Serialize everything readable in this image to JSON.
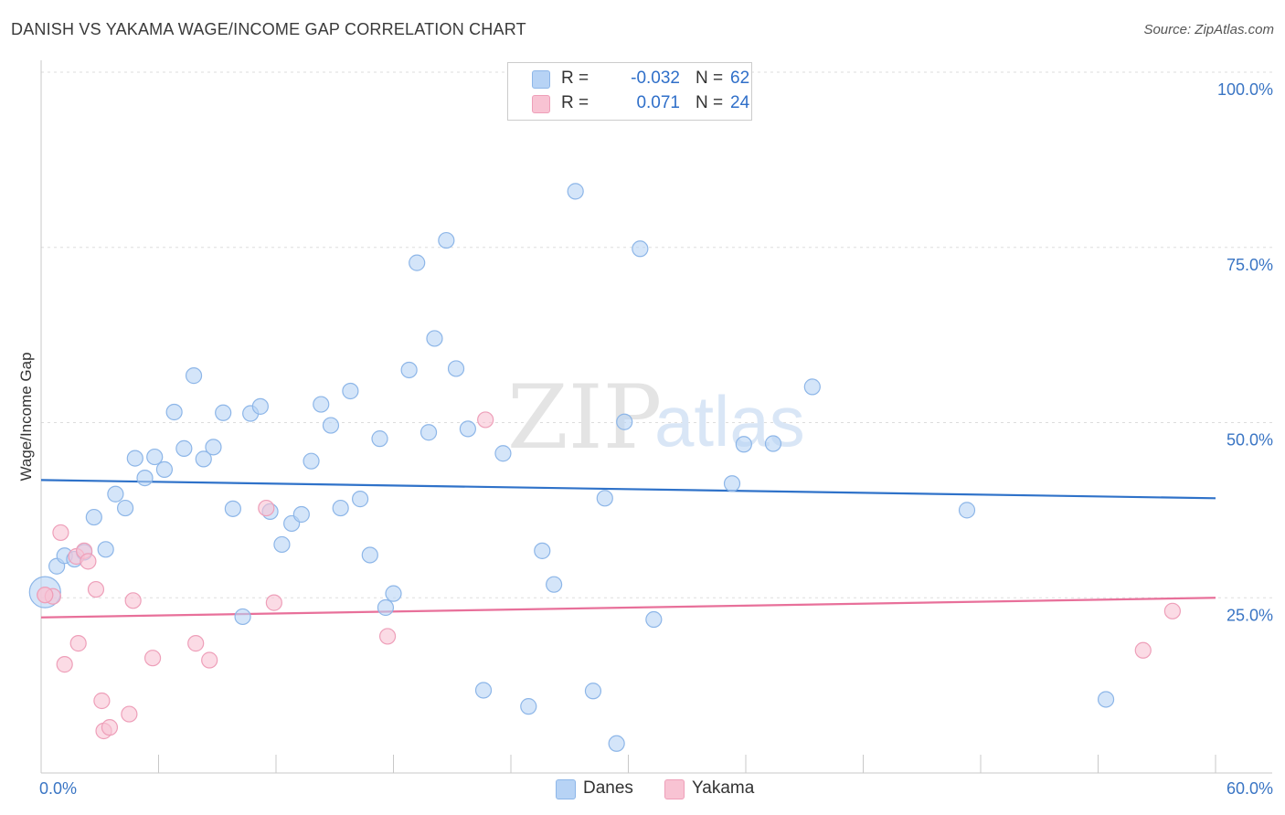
{
  "title": "DANISH VS YAKAMA WAGE/INCOME GAP CORRELATION CHART",
  "source": "Source: ZipAtlas.com",
  "watermark": {
    "part1": "ZIP",
    "part2": "atlas"
  },
  "colors": {
    "danes_fill": "#b7d3f5",
    "danes_stroke": "#8db6e8",
    "danes_line": "#2f72c9",
    "yakama_fill": "#f8c3d3",
    "yakama_stroke": "#ee9fb9",
    "yakama_line": "#e8709a",
    "axis_label": "#3a75c4",
    "grid": "#dddddd"
  },
  "legend": {
    "danes": {
      "r_label": "R =",
      "r_value": "-0.032",
      "n_label": "N =",
      "n_value": "62"
    },
    "yakama": {
      "r_label": "R =",
      "r_value": "0.071",
      "n_label": "N =",
      "n_value": "24"
    }
  },
  "chart_data": {
    "type": "scatter",
    "title": "DANISH VS YAKAMA WAGE/INCOME GAP CORRELATION CHART",
    "xlabel": "",
    "ylabel": "Wage/Income Gap",
    "xlim": [
      0,
      60
    ],
    "ylim": [
      0,
      100
    ],
    "x_tick_labels": [
      "0.0%",
      "60.0%"
    ],
    "y_ticks": [
      25,
      50,
      75,
      100
    ],
    "y_tick_labels": [
      "25.0%",
      "50.0%",
      "75.0%",
      "100.0%"
    ],
    "grid": true,
    "legend_position": "bottom-center",
    "series": [
      {
        "name": "Danes",
        "trend": [
          [
            0,
            41.8
          ],
          [
            60,
            39.2
          ]
        ],
        "points": [
          [
            0.2,
            25.8,
            "big"
          ],
          [
            0.8,
            29.5
          ],
          [
            1.2,
            31.0
          ],
          [
            1.7,
            30.5
          ],
          [
            2.2,
            31.5
          ],
          [
            2.7,
            36.5
          ],
          [
            3.3,
            31.9
          ],
          [
            3.8,
            39.8
          ],
          [
            4.3,
            37.8
          ],
          [
            4.8,
            44.9
          ],
          [
            5.3,
            42.1
          ],
          [
            5.8,
            45.1
          ],
          [
            6.3,
            43.3
          ],
          [
            6.8,
            51.5
          ],
          [
            7.3,
            46.3
          ],
          [
            7.8,
            56.7
          ],
          [
            8.3,
            44.8
          ],
          [
            8.8,
            46.5
          ],
          [
            9.3,
            51.4
          ],
          [
            9.8,
            37.7
          ],
          [
            10.3,
            22.3
          ],
          [
            10.7,
            51.3
          ],
          [
            11.2,
            52.3
          ],
          [
            11.7,
            37.3
          ],
          [
            12.3,
            32.6
          ],
          [
            12.8,
            35.6
          ],
          [
            13.3,
            36.9
          ],
          [
            13.8,
            44.5
          ],
          [
            14.3,
            52.6
          ],
          [
            14.8,
            49.6
          ],
          [
            15.3,
            37.8
          ],
          [
            15.8,
            54.5
          ],
          [
            16.3,
            39.1
          ],
          [
            16.8,
            31.1
          ],
          [
            17.3,
            47.7
          ],
          [
            17.6,
            23.6
          ],
          [
            18.0,
            25.6
          ],
          [
            18.8,
            57.5
          ],
          [
            19.2,
            72.8
          ],
          [
            19.8,
            48.6
          ],
          [
            20.1,
            62.0
          ],
          [
            20.7,
            76.0
          ],
          [
            21.2,
            57.7
          ],
          [
            21.8,
            49.1
          ],
          [
            22.6,
            11.8
          ],
          [
            23.6,
            45.6
          ],
          [
            24.9,
            9.5
          ],
          [
            25.6,
            31.7
          ],
          [
            26.2,
            26.9
          ],
          [
            27.3,
            83.0
          ],
          [
            28.2,
            11.7
          ],
          [
            28.8,
            39.2
          ],
          [
            29.4,
            4.2
          ],
          [
            29.8,
            50.1
          ],
          [
            30.6,
            74.8
          ],
          [
            31.3,
            21.9
          ],
          [
            35.3,
            41.3
          ],
          [
            35.9,
            46.9
          ],
          [
            37.4,
            47.0
          ],
          [
            39.4,
            55.1
          ],
          [
            47.3,
            37.5
          ],
          [
            54.4,
            10.5
          ]
        ]
      },
      {
        "name": "Yakama",
        "trend": [
          [
            0,
            22.2
          ],
          [
            60,
            25.0
          ]
        ],
        "points": [
          [
            0.2,
            25.4
          ],
          [
            0.6,
            25.2
          ],
          [
            1.0,
            34.3
          ],
          [
            1.2,
            15.5
          ],
          [
            1.8,
            30.9
          ],
          [
            1.9,
            18.5
          ],
          [
            2.2,
            31.7
          ],
          [
            2.4,
            30.2
          ],
          [
            2.8,
            26.2
          ],
          [
            3.1,
            10.3
          ],
          [
            3.2,
            6.0
          ],
          [
            3.5,
            6.5
          ],
          [
            4.5,
            8.4
          ],
          [
            4.7,
            24.6
          ],
          [
            5.7,
            16.4
          ],
          [
            7.9,
            18.5
          ],
          [
            8.6,
            16.1
          ],
          [
            11.5,
            37.8
          ],
          [
            11.9,
            24.3
          ],
          [
            17.7,
            19.5
          ],
          [
            22.7,
            50.4
          ],
          [
            56.3,
            17.5
          ],
          [
            57.8,
            23.1
          ],
          [
            0.2,
            25.4
          ]
        ]
      }
    ]
  }
}
